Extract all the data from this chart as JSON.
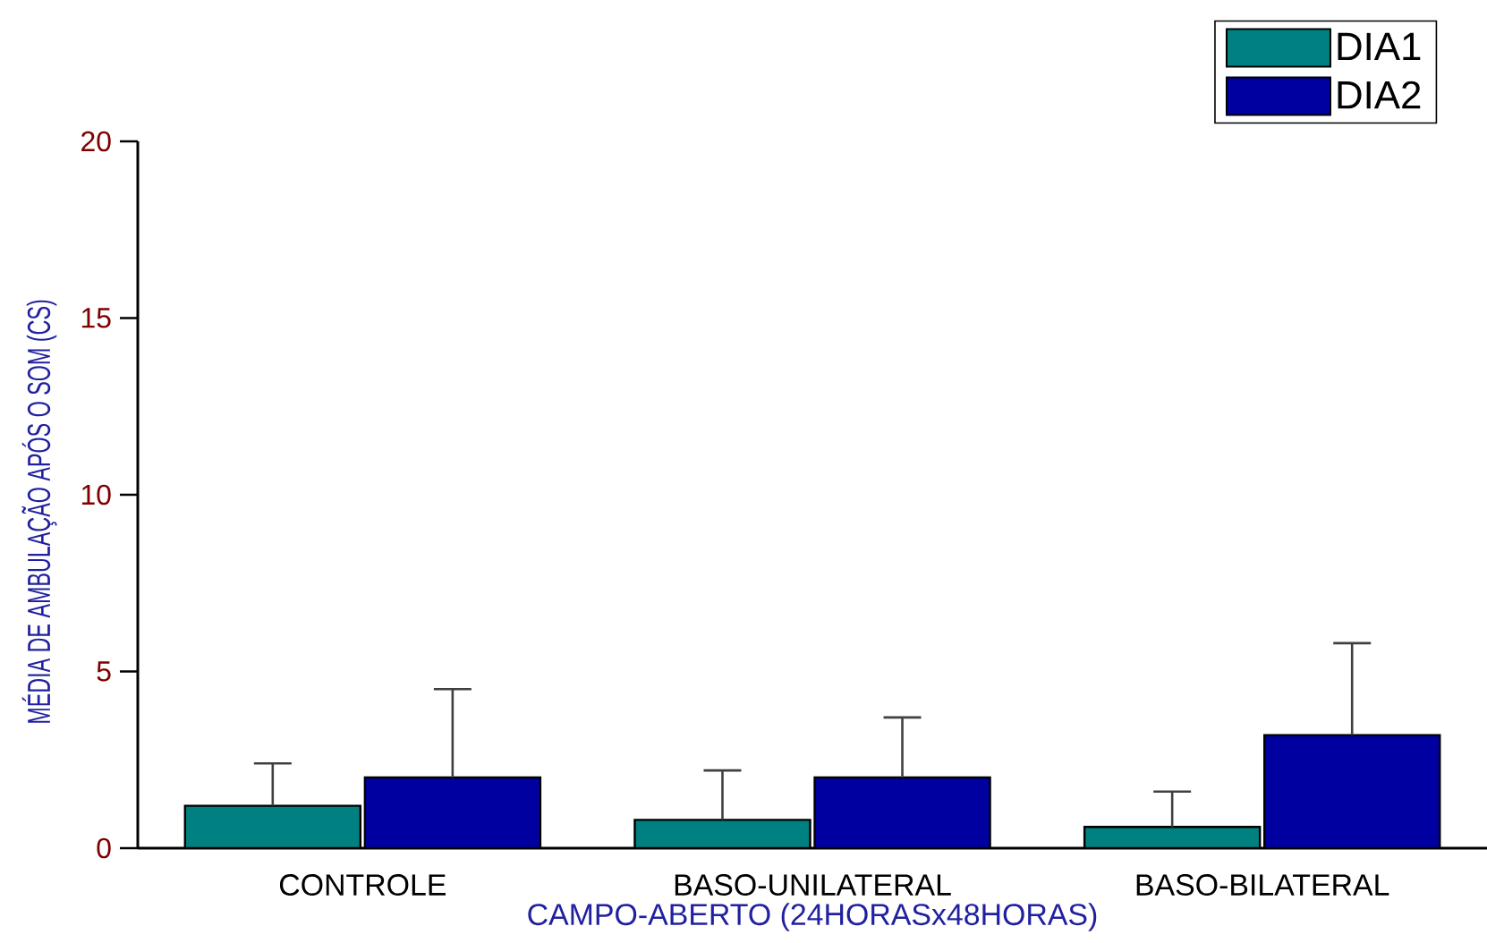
{
  "chart_data": {
    "type": "bar",
    "xlabel": "CAMPO-ABERTO (24HORASx48HORAS)",
    "ylabel": "MÉDIA DE AMBULAÇÃO APÓS O SOM (CS)",
    "categories": [
      "CONTROLE",
      "BASO-UNILATERAL",
      "BASO-BILATERAL"
    ],
    "series": [
      {
        "name": "DIA1",
        "color": "#008080",
        "values": [
          1.2,
          0.8,
          0.6
        ],
        "errors": [
          [
            1.2,
            2.4
          ],
          [
            0.8,
            2.2
          ],
          [
            0.6,
            1.6
          ]
        ]
      },
      {
        "name": "DIA2",
        "color": "#0000a0",
        "values": [
          2.0,
          2.0,
          3.2
        ],
        "errors": [
          [
            2.0,
            4.5
          ],
          [
            2.0,
            3.7
          ],
          [
            3.2,
            5.8
          ]
        ]
      }
    ],
    "ylim": [
      0,
      20
    ],
    "yticks": [
      0,
      5,
      10,
      15,
      20
    ],
    "legend": "top right"
  }
}
